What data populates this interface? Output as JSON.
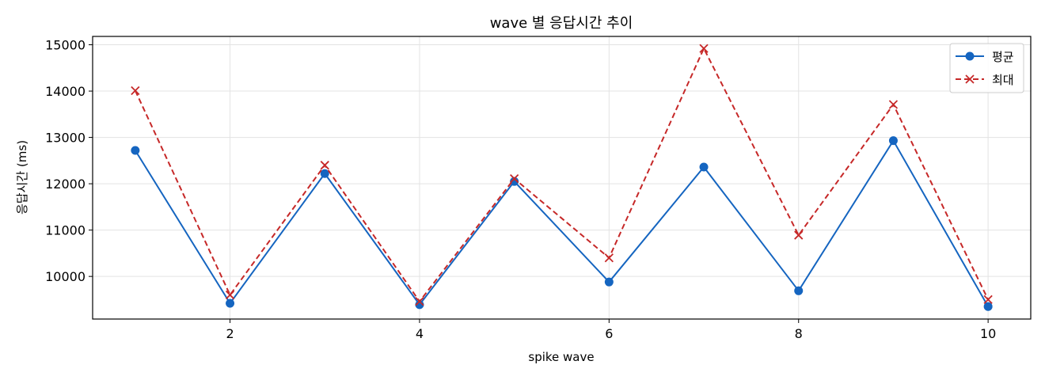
{
  "chart_data": {
    "type": "line",
    "title": "wave 별 응답시간 추이",
    "xlabel": "spike wave",
    "ylabel": "응답시간 (ms)",
    "x": [
      1,
      2,
      3,
      4,
      5,
      6,
      7,
      8,
      9,
      10
    ],
    "xlim": [
      0.55,
      10.45
    ],
    "ylim": [
      9080,
      15180
    ],
    "xticks": [
      2,
      4,
      6,
      8,
      10
    ],
    "yticks": [
      10000,
      11000,
      12000,
      13000,
      14000,
      15000
    ],
    "grid": true,
    "legend_position": "top-right",
    "series": [
      {
        "name": "평균",
        "marker": "circle",
        "linestyle": "solid",
        "color": "#1565c0",
        "values": [
          12720,
          9420,
          12220,
          9390,
          12050,
          9880,
          12360,
          9690,
          12930,
          9350
        ]
      },
      {
        "name": "최대",
        "marker": "x",
        "linestyle": "dashed",
        "color": "#c62828",
        "values": [
          14010,
          9600,
          12400,
          9460,
          12110,
          10400,
          14920,
          10890,
          13710,
          9500
        ]
      }
    ]
  }
}
